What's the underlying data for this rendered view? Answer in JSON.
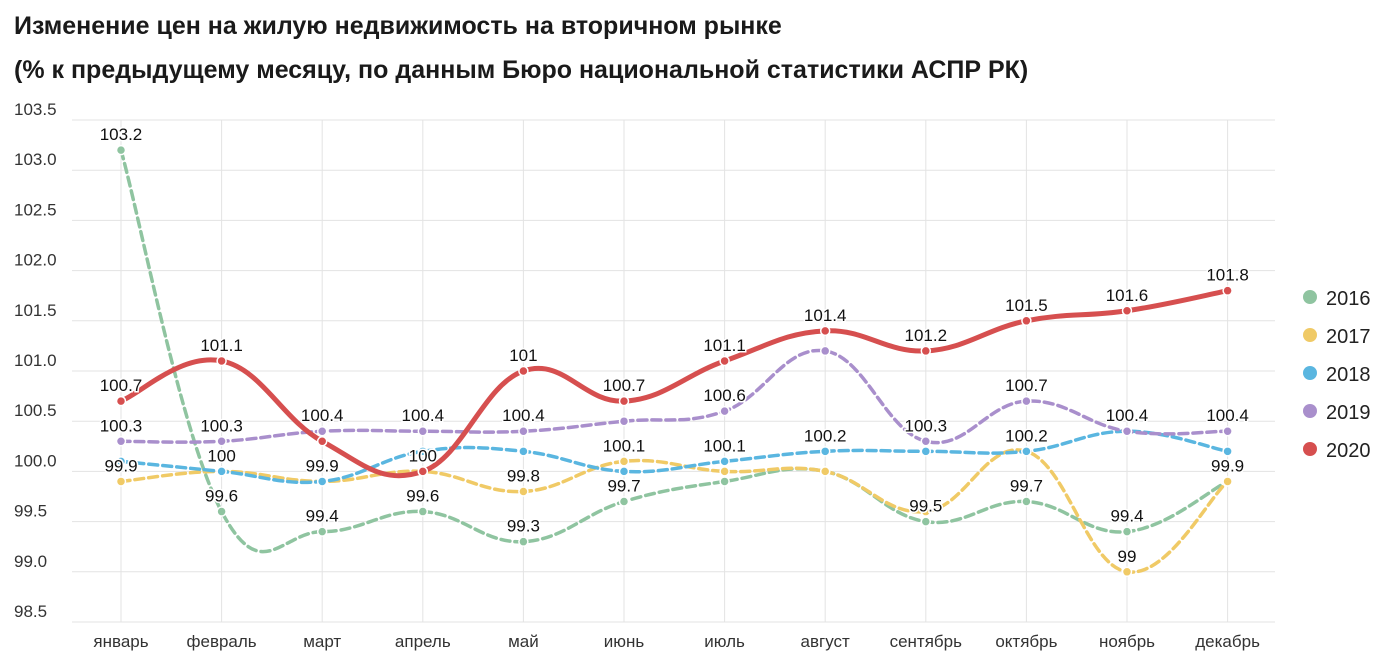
{
  "header": {
    "title_line1": "Изменение цен на жилую недвижимость на вторичном рынке",
    "title_line2": "(% к предыдущему месяцу, по данным Бюро национальной статистики АСПР РК)"
  },
  "chart_data": {
    "type": "line",
    "title": "Изменение цен на жилую недвижимость на вторичном рынке (% к предыдущему месяцу, по данным Бюро национальной статистики АСПР РК)",
    "xlabel": "",
    "ylabel": "",
    "categories": [
      "январь",
      "февраль",
      "март",
      "апрель",
      "май",
      "июнь",
      "июль",
      "август",
      "сентябрь",
      "октябрь",
      "ноябрь",
      "декабрь"
    ],
    "ylim": [
      98.5,
      103.5
    ],
    "yticks": [
      98.5,
      99.0,
      99.5,
      100.0,
      100.5,
      101.0,
      101.5,
      102.0,
      102.5,
      103.0,
      103.5
    ],
    "ytick_labels": [
      "98.5",
      "99.0",
      "99.5",
      "100.0",
      "100.5",
      "101.0",
      "101.5",
      "102.0",
      "102.5",
      "103.0",
      "103.5"
    ],
    "grid": true,
    "legend_position": "right",
    "series": [
      {
        "name": "2016",
        "color": "#8fc4a0",
        "style": "dashed",
        "values": [
          103.2,
          99.6,
          99.4,
          99.6,
          99.3,
          99.7,
          99.9,
          100.0,
          99.5,
          99.7,
          99.4,
          99.9
        ],
        "labels": [
          "103.2",
          "99.6",
          "99.4",
          "99.6",
          "99.3",
          "99.7",
          "",
          "",
          "99.5",
          "99.7",
          "99.4",
          "99.9"
        ]
      },
      {
        "name": "2017",
        "color": "#f0ca66",
        "style": "dashed",
        "values": [
          99.9,
          100.0,
          99.9,
          100.0,
          99.8,
          100.1,
          100.0,
          100.0,
          99.6,
          100.2,
          99.0,
          99.9
        ],
        "labels": [
          "99.9",
          "",
          "",
          "",
          "99.8",
          "100.1",
          "",
          "",
          "",
          "",
          "99",
          ""
        ]
      },
      {
        "name": "2018",
        "color": "#5ab6e0",
        "style": "dashed",
        "values": [
          100.1,
          100.0,
          99.9,
          100.2,
          100.2,
          100.0,
          100.1,
          100.2,
          100.2,
          100.2,
          100.4,
          100.2
        ],
        "labels": [
          "",
          "100",
          "99.9",
          "",
          "",
          "",
          "100.1",
          "100.2",
          "",
          "100.2",
          "",
          ""
        ]
      },
      {
        "name": "2019",
        "color": "#a98fcc",
        "style": "dashed",
        "values": [
          100.3,
          100.3,
          100.4,
          100.4,
          100.4,
          100.5,
          100.6,
          101.2,
          100.3,
          100.7,
          100.4,
          100.4
        ],
        "labels": [
          "100.3",
          "100.3",
          "100.4",
          "100.4",
          "100.4",
          "",
          "100.6",
          "",
          "100.3",
          "100.7",
          "100.4",
          "100.4"
        ]
      },
      {
        "name": "2020",
        "color": "#d64f4f",
        "style": "solid",
        "values": [
          100.7,
          101.1,
          100.3,
          100.0,
          101.0,
          100.7,
          101.1,
          101.4,
          101.2,
          101.5,
          101.6,
          101.8
        ],
        "labels": [
          "100.7",
          "101.1",
          "",
          "100",
          "101",
          "100.7",
          "101.1",
          "101.4",
          "101.2",
          "101.5",
          "101.6",
          "101.8"
        ]
      }
    ]
  }
}
